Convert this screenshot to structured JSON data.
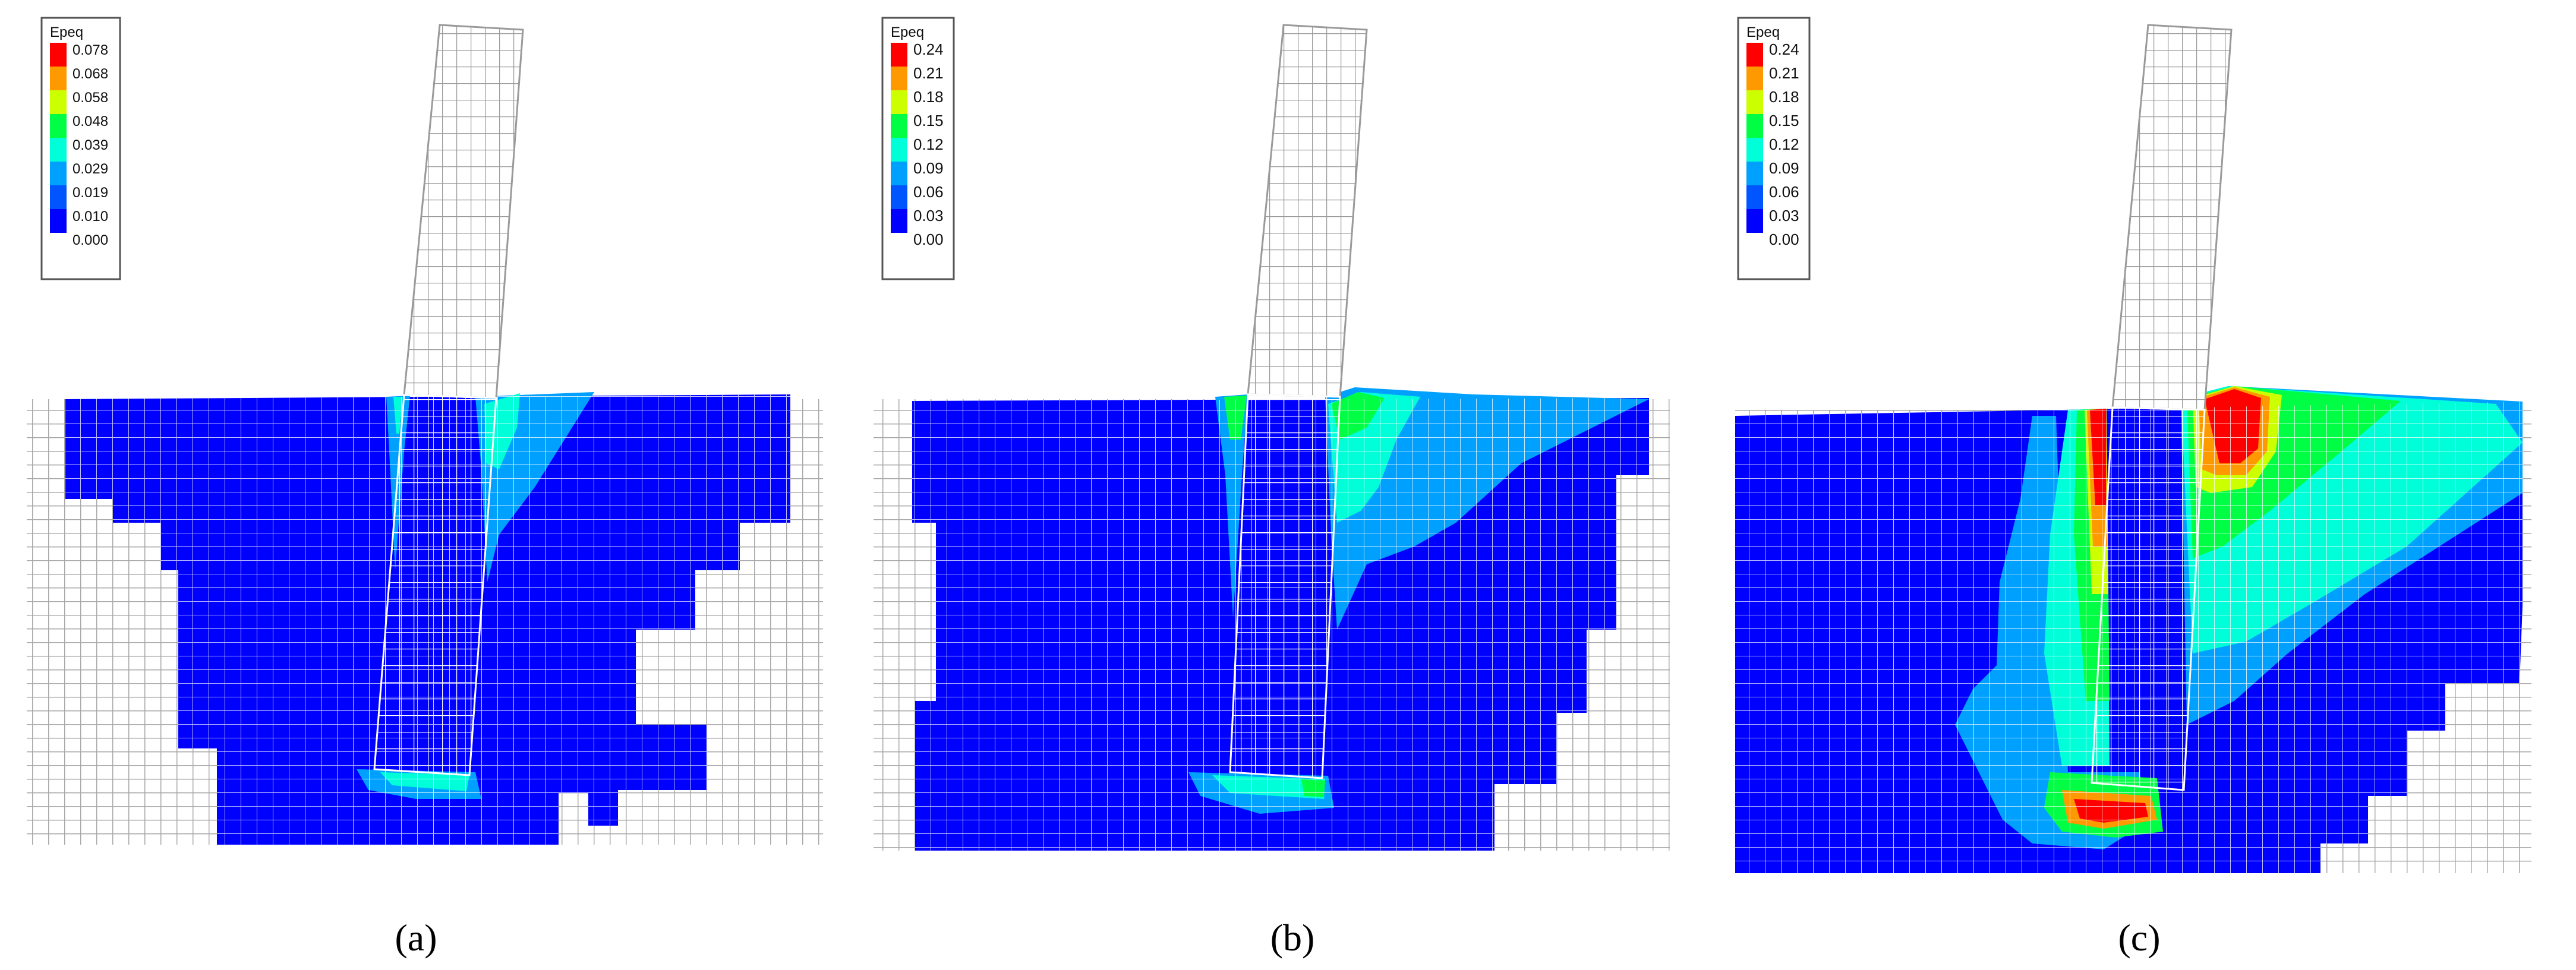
{
  "colors": {
    "ramp": [
      "#0000ff",
      "#0055ff",
      "#00a0ff",
      "#00ffd8",
      "#00ff44",
      "#ccff00",
      "#ff9900",
      "#ff0000"
    ],
    "mesh_line": "#ffffff",
    "background_mesh": "#a8a8a8"
  },
  "panels": [
    {
      "id": "a",
      "caption": "(a)",
      "legend": {
        "title": "Epeq",
        "labels": [
          "0.078",
          "0.068",
          "0.058",
          "0.048",
          "0.039",
          "0.029",
          "0.019",
          "0.010",
          "0.000"
        ]
      }
    },
    {
      "id": "b",
      "caption": "(b)",
      "legend": {
        "title": "Epeq",
        "labels": [
          "0.24",
          "0.21",
          "0.18",
          "0.15",
          "0.12",
          "0.09",
          "0.06",
          "0.03",
          "0.00"
        ]
      }
    },
    {
      "id": "c",
      "caption": "(c)",
      "legend": {
        "title": "Epeq",
        "labels": [
          "0.24",
          "0.21",
          "0.18",
          "0.15",
          "0.12",
          "0.09",
          "0.06",
          "0.03",
          "0.00"
        ]
      }
    }
  ]
}
